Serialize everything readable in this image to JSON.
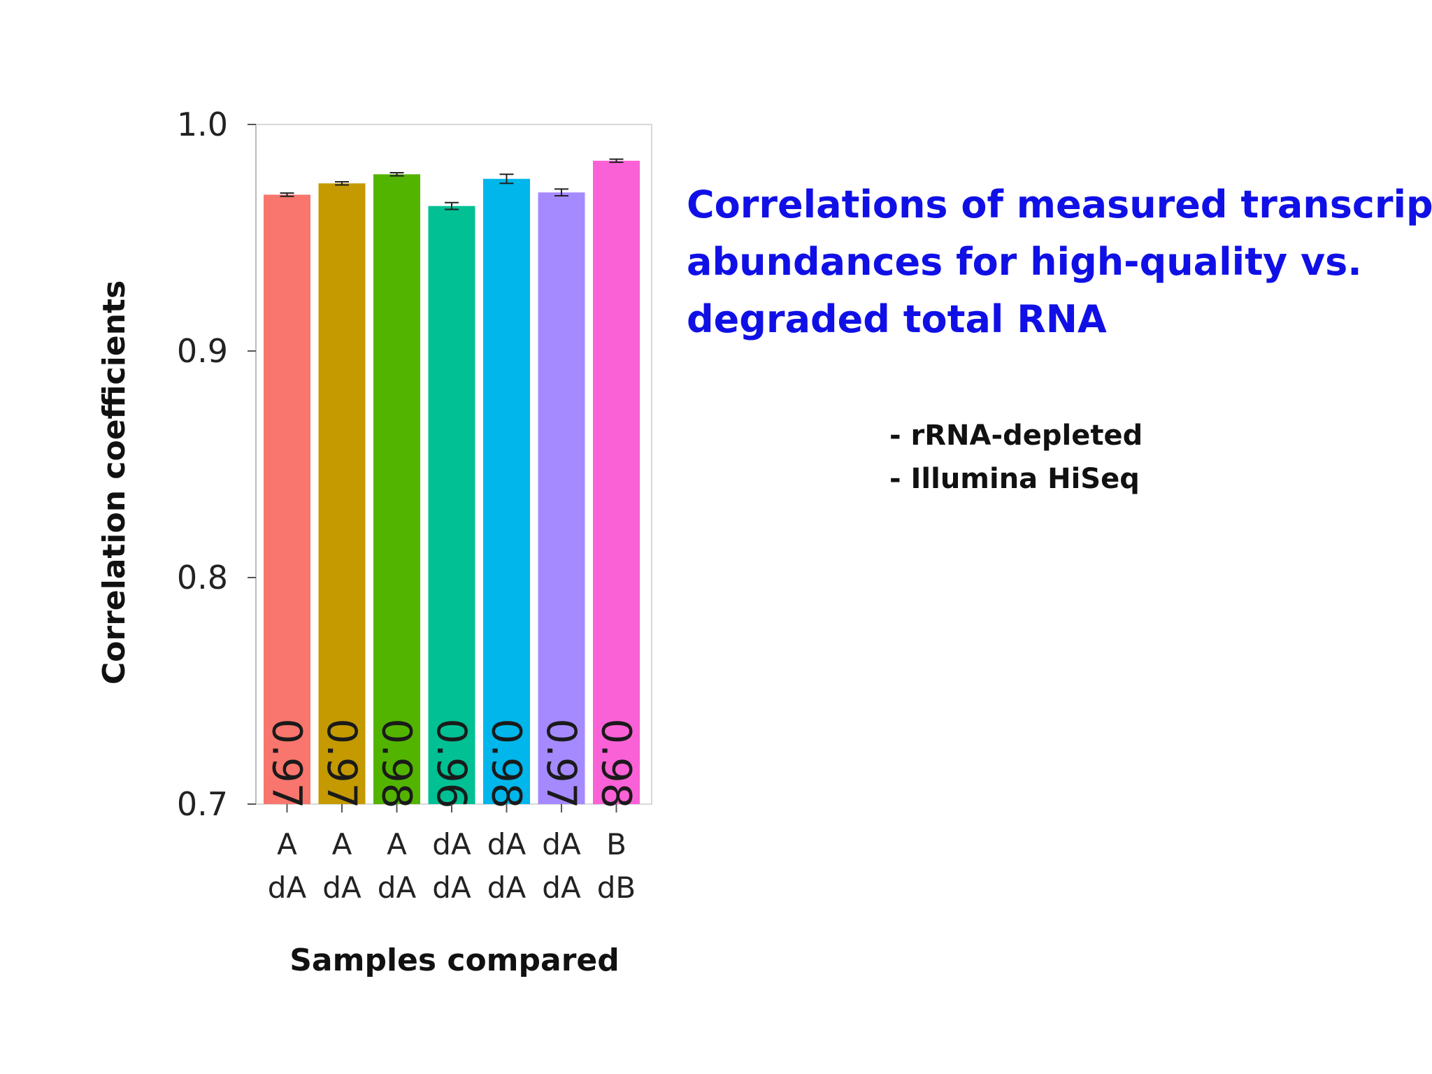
{
  "slide": {
    "title_lines": [
      "Correlations of measured transcript",
      "abundances for high-quality vs.",
      "degraded total RNA"
    ],
    "notes": [
      "- rRNA-depleted",
      "- Illumina HiSeq"
    ]
  },
  "chart_data": {
    "type": "bar",
    "categories": [
      [
        "A",
        "dA"
      ],
      [
        "A",
        "dA"
      ],
      [
        "A",
        "dA"
      ],
      [
        "dA",
        "dA"
      ],
      [
        "dA",
        "dA"
      ],
      [
        "dA",
        "dA"
      ],
      [
        "B",
        "dB"
      ]
    ],
    "values": [
      0.969,
      0.974,
      0.978,
      0.964,
      0.976,
      0.97,
      0.984
    ],
    "errors": [
      0.0007,
      0.0007,
      0.0007,
      0.0015,
      0.002,
      0.0015,
      0.0007
    ],
    "data_labels": [
      "0.97",
      "0.97",
      "0.98",
      "0.96",
      "0.98",
      "0.97",
      "0.98"
    ],
    "colors": [
      "#f8766d",
      "#c49a00",
      "#53b400",
      "#00c094",
      "#00b6eb",
      "#a58aff",
      "#fb61d7"
    ],
    "title": "",
    "xlabel": "Samples compared",
    "ylabel": "Correlation coefficients",
    "ylim": [
      0.7,
      1.0
    ],
    "yticks": [
      {
        "value": 0.7,
        "label": "0.7"
      },
      {
        "value": 0.8,
        "label": "0.8"
      },
      {
        "value": 0.9,
        "label": "0.9"
      },
      {
        "value": 1.0,
        "label": "1.0"
      }
    ],
    "grid": false,
    "legend": "none"
  }
}
